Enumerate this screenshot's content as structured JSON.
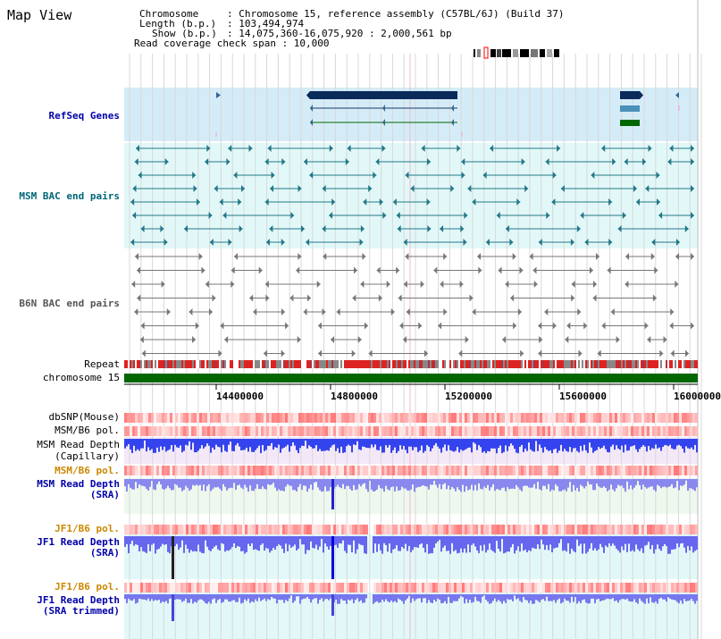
{
  "title": "Map View",
  "header": {
    "chromosome_key": "Chromosome",
    "chromosome_val": ": Chromosome 15, reference assembly (C57BL/6J) (Build 37)",
    "length_key": "Length (b.p.)",
    "length_val": ": 103,494,974",
    "show_key": "Show (b.p.)",
    "show_val": ": 14,075,360-16,075,920 : 2,000,561 bp",
    "span_line": "Read coverage check span : 10,000"
  },
  "tracks": {
    "refseq": "RefSeq Genes",
    "msm_bac": "MSM BAC end pairs",
    "b6n_bac": "B6N BAC end pairs",
    "repeat": "Repeat",
    "chromosome": "chromosome 15",
    "dbsnp": "dbSNP(Mouse)",
    "msm_b6_pol_1": "MSM/B6 pol.",
    "msm_read_depth_cap_1": "MSM Read Depth",
    "msm_read_depth_cap_2": "(Capillary)",
    "msm_b6_pol_2": "MSM/B6 pol.",
    "msm_read_depth_sra_1": "MSM Read Depth",
    "msm_read_depth_sra_2": "(SRA)",
    "jf1_b6_pol_1": "JF1/B6 pol.",
    "jf1_read_depth_1": "JF1 Read Depth",
    "jf1_read_depth_2": "(SRA)",
    "jf1_b6_pol_2": "JF1/B6 pol.",
    "jf1_trim_1": "JF1 Read Depth",
    "jf1_trim_2": "(SRA trimmed)"
  },
  "axis": {
    "ticks": [
      "14400000",
      "14800000",
      "15200000",
      "15600000",
      "16000000"
    ]
  },
  "colors": {
    "refseq_label": "#0000aa",
    "msm_label": "#006677",
    "b6n_label": "#555555",
    "orange_label": "#cc8800",
    "blue_label": "#0000aa",
    "refseq_bg": "#d4ecf7",
    "msm_bg": "#e2f8f8",
    "chrom_green": "#006600"
  }
}
